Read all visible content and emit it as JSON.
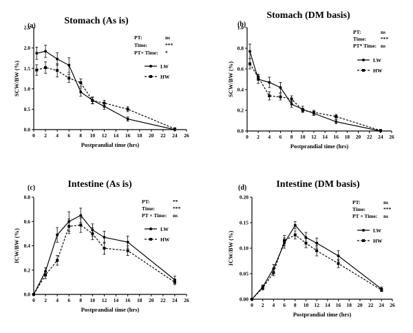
{
  "chart_data": [
    {
      "panel": "(a)",
      "type": "line",
      "title": "Stomach (As is)",
      "xlabel": "Postprandial time (hrs)",
      "ylabel": "SCW/BW (%)",
      "xlim": [
        0,
        26
      ],
      "ylim": [
        0,
        2.5
      ],
      "xticks": [
        "0",
        "2",
        "4",
        "6",
        "8",
        "10",
        "12",
        "14",
        "16",
        "18",
        "20",
        "22",
        "24",
        "26"
      ],
      "yticks": [
        "0.0",
        "0.5",
        "1.0",
        "1.5",
        "2.0",
        "2.5"
      ],
      "x": [
        0.5,
        2,
        4,
        6,
        8,
        10,
        12,
        16,
        24
      ],
      "series": [
        {
          "name": "LW",
          "style": "solid",
          "values": [
            1.87,
            1.92,
            1.73,
            1.58,
            0.92,
            0.72,
            0.57,
            0.26,
            0.0
          ],
          "errors": [
            0.15,
            0.15,
            0.15,
            0.18,
            0.1,
            0.08,
            0.07,
            0.05,
            0.01
          ]
        },
        {
          "name": "HW",
          "style": "dashed",
          "values": [
            1.46,
            1.52,
            1.45,
            1.26,
            1.15,
            0.71,
            0.65,
            0.5,
            0.02
          ],
          "errors": [
            0.13,
            0.14,
            0.16,
            0.1,
            0.09,
            0.08,
            0.07,
            0.06,
            0.01
          ]
        }
      ],
      "stats": [
        {
          "label": "PT:",
          "value": "ns"
        },
        {
          "label": "Time:",
          "value": "***"
        },
        {
          "label": "PT× Time:",
          "value": "*"
        }
      ]
    },
    {
      "panel": "(b)",
      "type": "line",
      "title": "Stomach (DM basis)",
      "xlabel": "Postprandial time (hrs)",
      "ylabel": "SCW/BW (%)",
      "xlim": [
        0,
        26
      ],
      "ylim": [
        0,
        1.0
      ],
      "xticks": [
        "0",
        "2",
        "4",
        "6",
        "8",
        "10",
        "12",
        "14",
        "16",
        "18",
        "20",
        "22",
        "24",
        "26"
      ],
      "yticks": [
        "0.0",
        "0.2",
        "0.4",
        "0.6",
        "0.8",
        "1.0"
      ],
      "x": [
        0.5,
        2,
        4,
        6,
        8,
        10,
        12,
        16,
        24
      ],
      "series": [
        {
          "name": "LW",
          "style": "solid",
          "values": [
            0.77,
            0.5,
            0.47,
            0.42,
            0.26,
            0.21,
            0.17,
            0.09,
            0.0
          ],
          "errors": [
            0.07,
            0.04,
            0.05,
            0.05,
            0.03,
            0.03,
            0.02,
            0.02,
            0.005
          ]
        },
        {
          "name": "HW",
          "style": "dashed",
          "values": [
            0.65,
            0.52,
            0.34,
            0.33,
            0.31,
            0.2,
            0.18,
            0.14,
            0.005
          ],
          "errors": [
            0.05,
            0.03,
            0.04,
            0.03,
            0.03,
            0.02,
            0.02,
            0.02,
            0.005
          ]
        }
      ],
      "stats": [
        {
          "label": "PT:",
          "value": "ns"
        },
        {
          "label": "Time:",
          "value": "***"
        },
        {
          "label": "PT* Time:",
          "value": "ns"
        }
      ]
    },
    {
      "panel": "(c)",
      "type": "line",
      "title": "Intestine (As is)",
      "xlabel": "Postprandial time (hrs)",
      "ylabel": "ICW/BW (%)",
      "xlim": [
        0,
        26
      ],
      "ylim": [
        0,
        0.8
      ],
      "xticks": [
        "0",
        "2",
        "4",
        "6",
        "8",
        "10",
        "12",
        "14",
        "16",
        "18",
        "20",
        "22",
        "24",
        "26"
      ],
      "yticks": [
        "0.0",
        "0.2",
        "0.4",
        "0.6",
        "0.8"
      ],
      "x": [
        0,
        2,
        4,
        6,
        8,
        10,
        12,
        16,
        24
      ],
      "series": [
        {
          "name": "LW",
          "style": "solid",
          "values": [
            0.0,
            0.19,
            0.49,
            0.6,
            0.65,
            0.53,
            0.47,
            0.43,
            0.12
          ],
          "errors": [
            0.0,
            0.03,
            0.06,
            0.08,
            0.06,
            0.05,
            0.05,
            0.05,
            0.03
          ]
        },
        {
          "name": "HW",
          "style": "dashed",
          "values": [
            0.0,
            0.16,
            0.28,
            0.56,
            0.57,
            0.5,
            0.38,
            0.36,
            0.1
          ],
          "errors": [
            0.0,
            0.03,
            0.04,
            0.06,
            0.06,
            0.05,
            0.05,
            0.04,
            0.02
          ]
        }
      ],
      "stats": [
        {
          "label": "PT:",
          "value": "**"
        },
        {
          "label": "Time:",
          "value": "***"
        },
        {
          "label": "PT × Time:",
          "value": "ns"
        }
      ]
    },
    {
      "panel": "(d)",
      "type": "line",
      "title": "Intestine (DM basis)",
      "xlabel": "Postprandial time (hrs)",
      "ylabel": "ICW/BW (%)",
      "xlim": [
        0,
        26
      ],
      "ylim": [
        0,
        0.2
      ],
      "xticks": [
        "0",
        "2",
        "4",
        "6",
        "8",
        "10",
        "12",
        "14",
        "16",
        "18",
        "20",
        "22",
        "24",
        "26"
      ],
      "yticks": [
        "0.00",
        "0.05",
        "0.10",
        "0.15",
        "0.20"
      ],
      "x": [
        0,
        2,
        4,
        6,
        8,
        10,
        12,
        16,
        24
      ],
      "series": [
        {
          "name": "LW",
          "style": "solid",
          "values": [
            0.0,
            0.024,
            0.06,
            0.11,
            0.145,
            0.121,
            0.11,
            0.085,
            0.02
          ],
          "errors": [
            0.0,
            0.004,
            0.008,
            0.01,
            0.007,
            0.01,
            0.01,
            0.01,
            0.004
          ]
        },
        {
          "name": "HW",
          "style": "dashed",
          "values": [
            0.0,
            0.022,
            0.052,
            0.115,
            0.126,
            0.11,
            0.095,
            0.07,
            0.018
          ],
          "errors": [
            0.0,
            0.004,
            0.006,
            0.01,
            0.008,
            0.009,
            0.01,
            0.008,
            0.003
          ]
        }
      ],
      "stats": [
        {
          "label": "PT:",
          "value": "ns"
        },
        {
          "label": "Time:",
          "value": "***"
        },
        {
          "label": "PT × Time:",
          "value": "ns"
        }
      ]
    }
  ]
}
